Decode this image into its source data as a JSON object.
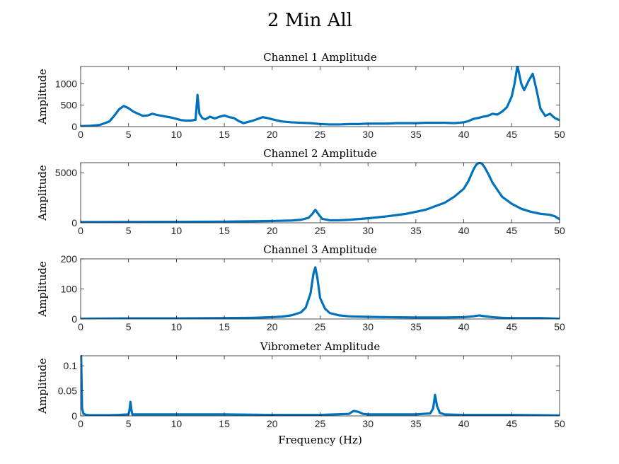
{
  "figure": {
    "title": "2 Min All",
    "line_color": "#0072BD",
    "axis_color": "#262626",
    "background": "#ffffff"
  },
  "chart_data": [
    {
      "type": "line",
      "title": "Channel 1 Amplitude",
      "xlabel": "",
      "ylabel": "Amplitude",
      "xlim": [
        0,
        50
      ],
      "ylim": [
        0,
        1400
      ],
      "xticks": [
        0,
        5,
        10,
        15,
        20,
        25,
        30,
        35,
        40,
        45,
        50
      ],
      "yticks": [
        0,
        500,
        1000
      ],
      "xticklabels": [
        "0",
        "5",
        "10",
        "15",
        "20",
        "25",
        "30",
        "35",
        "40",
        "45",
        "50"
      ],
      "yticklabels": [
        "0",
        "500",
        "1000"
      ],
      "series": [
        {
          "x": [
            0,
            1,
            2,
            3,
            3.5,
            4,
            4.5,
            5,
            5.5,
            6,
            6.5,
            7,
            7.5,
            8,
            8.5,
            9,
            9.5,
            10,
            10.5,
            11,
            11.5,
            12,
            12.2,
            12.4,
            12.7,
            13,
            13.5,
            14,
            14.5,
            15,
            15.5,
            16,
            16.5,
            17,
            17.5,
            18,
            18.5,
            19,
            19.5,
            20,
            21,
            22,
            23,
            24,
            25,
            26,
            27,
            28,
            29,
            30,
            31,
            32,
            33,
            34,
            35,
            36,
            37,
            38,
            39,
            40,
            40.5,
            41,
            41.5,
            42,
            42.5,
            43,
            43.5,
            44,
            44.5,
            45,
            45.3,
            45.6,
            46,
            46.3,
            46.8,
            47.2,
            47.6,
            48,
            48.5,
            49,
            49.5,
            50
          ],
          "y": [
            10,
            20,
            40,
            120,
            250,
            400,
            480,
            430,
            350,
            300,
            250,
            260,
            300,
            270,
            250,
            230,
            210,
            180,
            150,
            140,
            140,
            160,
            740,
            300,
            200,
            170,
            230,
            190,
            230,
            260,
            220,
            200,
            130,
            80,
            110,
            140,
            180,
            220,
            200,
            170,
            120,
            100,
            90,
            80,
            60,
            50,
            50,
            60,
            60,
            70,
            70,
            70,
            80,
            80,
            80,
            90,
            90,
            90,
            80,
            100,
            130,
            180,
            200,
            230,
            250,
            300,
            280,
            350,
            450,
            700,
            1000,
            1420,
            1000,
            850,
            1080,
            1230,
            850,
            420,
            250,
            300,
            200,
            150
          ]
        }
      ]
    },
    {
      "type": "line",
      "title": "Channel 2 Amplitude",
      "xlabel": "",
      "ylabel": "Amplitude",
      "xlim": [
        0,
        50
      ],
      "ylim": [
        0,
        6000
      ],
      "xticks": [
        0,
        5,
        10,
        15,
        20,
        25,
        30,
        35,
        40,
        45,
        50
      ],
      "yticks": [
        0,
        5000
      ],
      "xticklabels": [
        "0",
        "5",
        "10",
        "15",
        "20",
        "25",
        "30",
        "35",
        "40",
        "45",
        "50"
      ],
      "yticklabels": [
        "0",
        "5000"
      ],
      "series": [
        {
          "x": [
            0,
            5,
            10,
            15,
            18,
            20,
            22,
            23,
            23.8,
            24.2,
            24.5,
            24.8,
            25.2,
            26,
            27,
            28,
            30,
            32,
            34,
            36,
            38,
            39,
            40,
            40.5,
            41,
            41.3,
            41.6,
            41.9,
            42.2,
            42.6,
            43,
            43.5,
            44,
            45,
            46,
            47,
            48,
            49,
            49.5,
            50
          ],
          "y": [
            80,
            90,
            100,
            120,
            150,
            180,
            230,
            300,
            500,
            900,
            1300,
            900,
            400,
            250,
            250,
            300,
            450,
            650,
            900,
            1300,
            2000,
            2600,
            3400,
            4200,
            5300,
            5800,
            6000,
            5900,
            5500,
            4800,
            4000,
            3300,
            2600,
            1900,
            1400,
            1100,
            900,
            800,
            650,
            350
          ]
        }
      ]
    },
    {
      "type": "line",
      "title": "Channel 3 Amplitude",
      "xlabel": "",
      "ylabel": "Amplitude",
      "xlim": [
        0,
        50
      ],
      "ylim": [
        0,
        200
      ],
      "xticks": [
        0,
        5,
        10,
        15,
        20,
        25,
        30,
        35,
        40,
        45,
        50
      ],
      "yticks": [
        0,
        100,
        200
      ],
      "xticklabels": [
        "0",
        "5",
        "10",
        "15",
        "20",
        "25",
        "30",
        "35",
        "40",
        "45",
        "50"
      ],
      "yticklabels": [
        "0",
        "100",
        "200"
      ],
      "series": [
        {
          "x": [
            0,
            5,
            10,
            15,
            18,
            20,
            21,
            22,
            23,
            23.5,
            24,
            24.3,
            24.5,
            24.7,
            25,
            25.5,
            26,
            27,
            28,
            30,
            32,
            35,
            38,
            40,
            41,
            41.6,
            42,
            43,
            44,
            45,
            47,
            48,
            49,
            50
          ],
          "y": [
            1,
            2,
            2,
            3,
            4,
            6,
            8,
            12,
            22,
            38,
            85,
            150,
            172,
            140,
            70,
            35,
            20,
            12,
            9,
            7,
            6,
            5,
            5,
            6,
            9,
            12,
            10,
            6,
            4,
            3,
            3,
            3,
            2,
            1
          ]
        }
      ]
    },
    {
      "type": "line",
      "title": "Vibrometer Amplitude",
      "xlabel": "Frequency (Hz)",
      "ylabel": "Amplitude",
      "xlim": [
        0,
        50
      ],
      "ylim": [
        0,
        0.12
      ],
      "xticks": [
        0,
        5,
        10,
        15,
        20,
        25,
        30,
        35,
        40,
        45,
        50
      ],
      "yticks": [
        0,
        0.05,
        0.1
      ],
      "xticklabels": [
        "0",
        "5",
        "10",
        "15",
        "20",
        "25",
        "30",
        "35",
        "40",
        "45",
        "50"
      ],
      "yticklabels": [
        "0",
        "0.05",
        "0.1"
      ],
      "series": [
        {
          "x": [
            0,
            0.05,
            0.15,
            0.3,
            0.6,
            1,
            2,
            3,
            4,
            5,
            5.1,
            5.2,
            5.3,
            5.4,
            6,
            8,
            10,
            12,
            15,
            20,
            25,
            28,
            28.5,
            29,
            29.5,
            30,
            32,
            35,
            36.5,
            36.8,
            37,
            37.2,
            37.5,
            38,
            40,
            45,
            50
          ],
          "y": [
            0.12,
            0.12,
            0.015,
            0.004,
            0.002,
            0.0015,
            0.0015,
            0.0015,
            0.002,
            0.003,
            0.012,
            0.028,
            0.012,
            0.003,
            0.003,
            0.003,
            0.003,
            0.003,
            0.003,
            0.002,
            0.002,
            0.004,
            0.01,
            0.008,
            0.004,
            0.003,
            0.003,
            0.003,
            0.005,
            0.015,
            0.042,
            0.02,
            0.006,
            0.003,
            0.002,
            0.002,
            0.001
          ]
        }
      ]
    }
  ]
}
